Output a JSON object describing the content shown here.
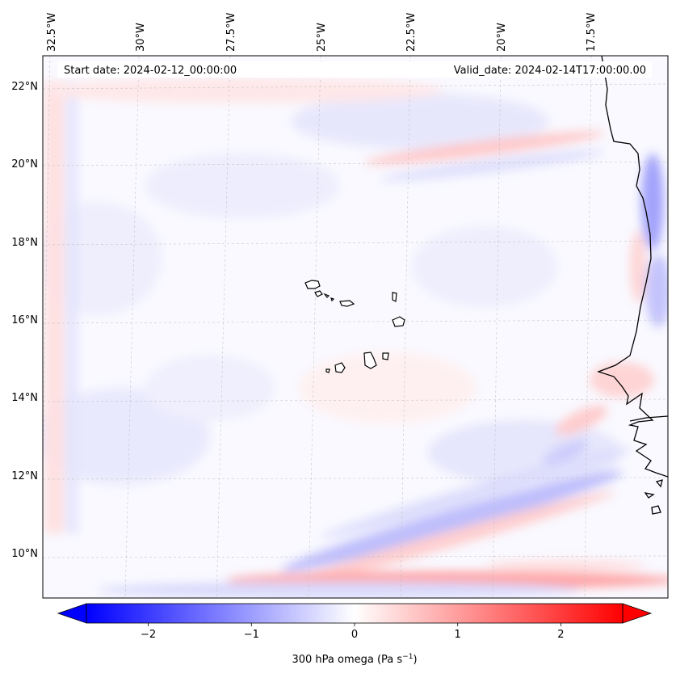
{
  "header": {
    "start_date": "Start date: 2024-02-12_00:00:00",
    "valid_date": "Valid_date: 2024-02-14T17:00:00.00"
  },
  "map": {
    "variable": "300 hPa omega",
    "projection_extent": {
      "lon_min": -32.8,
      "lon_max": -15.5,
      "lat_min": 8.8,
      "lat_max": 22.8
    },
    "lon_ticks": [
      {
        "label": "32.5°W",
        "value": -32.5
      },
      {
        "label": "30°W",
        "value": -30
      },
      {
        "label": "27.5°W",
        "value": -27.5
      },
      {
        "label": "25°W",
        "value": -25
      },
      {
        "label": "22.5°W",
        "value": -22.5
      },
      {
        "label": "20°W",
        "value": -20
      },
      {
        "label": "17.5°W",
        "value": -17.5
      }
    ],
    "lat_ticks": [
      {
        "label": "22°N",
        "value": 22
      },
      {
        "label": "20°N",
        "value": 20
      },
      {
        "label": "18°N",
        "value": 18
      },
      {
        "label": "16°N",
        "value": 16
      },
      {
        "label": "14°N",
        "value": 14
      },
      {
        "label": "12°N",
        "value": 12
      },
      {
        "label": "10°N",
        "value": 10
      }
    ],
    "features": [
      "Cape Verde islands",
      "West African coastline (Mauritania, Senegal, Gambia, Guinea-Bissau)"
    ]
  },
  "colorbar": {
    "label_prefix": "300 hPa omega (Pa s",
    "label_sup": "−1",
    "label_suffix": ")",
    "min": -2.6,
    "max": 2.6,
    "ticks": [
      {
        "label": "−2",
        "value": -2
      },
      {
        "label": "−1",
        "value": -1
      },
      {
        "label": "0",
        "value": 0
      },
      {
        "label": "1",
        "value": 1
      },
      {
        "label": "2",
        "value": 2
      }
    ],
    "colormap": "bwr",
    "colors": {
      "negative": "#0000ff",
      "zero": "#ffffff",
      "positive": "#ff0000"
    }
  }
}
